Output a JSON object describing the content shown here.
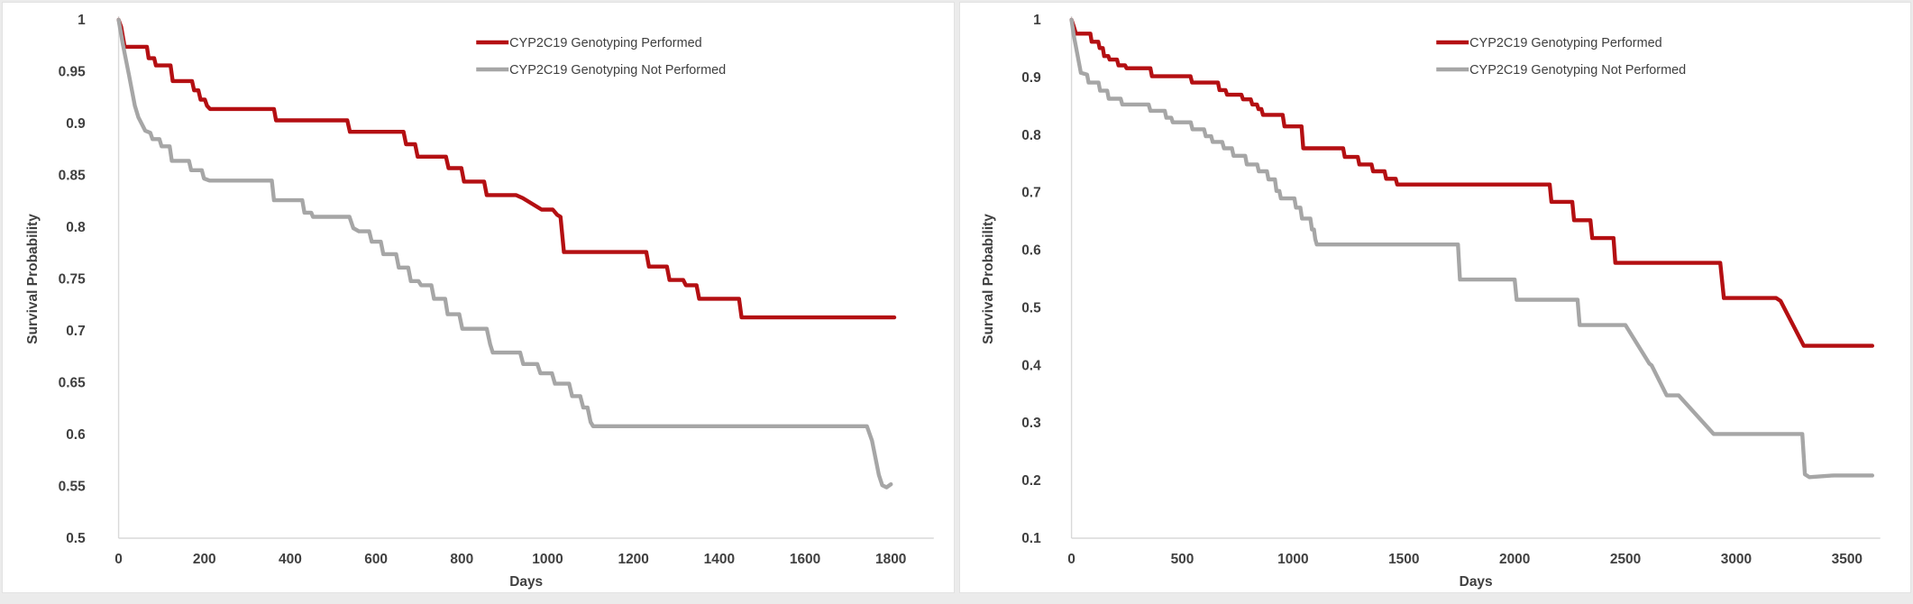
{
  "colors": {
    "performed": "#b40f12",
    "not_performed": "#a6a6a6",
    "axis_line": "#d9d9d9",
    "text": "#404040",
    "legend_text": "#3f3f3f"
  },
  "chart_data": [
    {
      "type": "line",
      "title": "",
      "xlabel": "Days",
      "ylabel": "Survival Probability",
      "xlim": [
        0,
        1900
      ],
      "ylim": [
        0.5,
        1.0
      ],
      "grid": false,
      "legend_position": "top-right",
      "xticks": {
        "values": [
          0,
          200,
          400,
          600,
          800,
          1000,
          1200,
          1400,
          1600,
          1800
        ],
        "labels": [
          "0",
          "200",
          "400",
          "600",
          "800",
          "1000",
          "1200",
          "1400",
          "1600",
          "1800"
        ]
      },
      "yticks": {
        "values": [
          1.0,
          0.95,
          0.9,
          0.85,
          0.8,
          0.75,
          0.7,
          0.65,
          0.6,
          0.55,
          0.5
        ],
        "labels": [
          "1",
          "0.95",
          "0.9",
          "0.85",
          "0.8",
          "0.75",
          "0.7",
          "0.65",
          "0.6",
          "0.55",
          "0.5"
        ]
      },
      "series": [
        {
          "name": "CYP2C19 Genotyping Performed",
          "color_key": "performed",
          "points": [
            [
              0,
              1.0
            ],
            [
              6,
              0.993
            ],
            [
              14,
              0.974
            ],
            [
              66,
              0.974
            ],
            [
              70,
              0.963
            ],
            [
              83,
              0.963
            ],
            [
              87,
              0.956
            ],
            [
              121,
              0.956
            ],
            [
              126,
              0.941
            ],
            [
              171,
              0.941
            ],
            [
              176,
              0.932
            ],
            [
              186,
              0.932
            ],
            [
              191,
              0.923
            ],
            [
              201,
              0.923
            ],
            [
              206,
              0.917
            ],
            [
              213,
              0.914
            ],
            [
              362,
              0.914
            ],
            [
              367,
              0.903
            ],
            [
              533,
              0.903
            ],
            [
              539,
              0.892
            ],
            [
              664,
              0.892
            ],
            [
              670,
              0.88
            ],
            [
              691,
              0.88
            ],
            [
              697,
              0.868
            ],
            [
              763,
              0.868
            ],
            [
              769,
              0.857
            ],
            [
              799,
              0.857
            ],
            [
              805,
              0.844
            ],
            [
              852,
              0.844
            ],
            [
              858,
              0.831
            ],
            [
              926,
              0.831
            ],
            [
              942,
              0.828
            ],
            [
              986,
              0.817
            ],
            [
              1012,
              0.817
            ],
            [
              1022,
              0.812
            ],
            [
              1030,
              0.81
            ],
            [
              1038,
              0.776
            ],
            [
              1230,
              0.776
            ],
            [
              1236,
              0.762
            ],
            [
              1278,
              0.762
            ],
            [
              1284,
              0.749
            ],
            [
              1316,
              0.749
            ],
            [
              1322,
              0.744
            ],
            [
              1347,
              0.744
            ],
            [
              1353,
              0.731
            ],
            [
              1446,
              0.731
            ],
            [
              1452,
              0.713
            ],
            [
              1808,
              0.713
            ]
          ]
        },
        {
          "name": "CYP2C19 Genotyping Not Performed",
          "color_key": "not_performed",
          "points": [
            [
              0,
              1.0
            ],
            [
              10,
              0.976
            ],
            [
              24,
              0.947
            ],
            [
              38,
              0.917
            ],
            [
              46,
              0.906
            ],
            [
              56,
              0.898
            ],
            [
              62,
              0.893
            ],
            [
              74,
              0.891
            ],
            [
              79,
              0.885
            ],
            [
              95,
              0.885
            ],
            [
              100,
              0.878
            ],
            [
              119,
              0.878
            ],
            [
              124,
              0.864
            ],
            [
              164,
              0.864
            ],
            [
              169,
              0.855
            ],
            [
              194,
              0.855
            ],
            [
              199,
              0.847
            ],
            [
              212,
              0.845
            ],
            [
              357,
              0.845
            ],
            [
              362,
              0.826
            ],
            [
              428,
              0.826
            ],
            [
              433,
              0.814
            ],
            [
              449,
              0.814
            ],
            [
              453,
              0.81
            ],
            [
              538,
              0.81
            ],
            [
              547,
              0.799
            ],
            [
              560,
              0.796
            ],
            [
              584,
              0.796
            ],
            [
              590,
              0.786
            ],
            [
              611,
              0.786
            ],
            [
              617,
              0.774
            ],
            [
              647,
              0.774
            ],
            [
              653,
              0.761
            ],
            [
              675,
              0.761
            ],
            [
              681,
              0.748
            ],
            [
              699,
              0.748
            ],
            [
              705,
              0.744
            ],
            [
              729,
              0.744
            ],
            [
              735,
              0.731
            ],
            [
              761,
              0.731
            ],
            [
              767,
              0.716
            ],
            [
              794,
              0.716
            ],
            [
              801,
              0.702
            ],
            [
              858,
              0.702
            ],
            [
              866,
              0.687
            ],
            [
              872,
              0.679
            ],
            [
              936,
              0.679
            ],
            [
              943,
              0.668
            ],
            [
              976,
              0.668
            ],
            [
              983,
              0.659
            ],
            [
              1010,
              0.659
            ],
            [
              1017,
              0.649
            ],
            [
              1050,
              0.649
            ],
            [
              1057,
              0.637
            ],
            [
              1076,
              0.637
            ],
            [
              1083,
              0.626
            ],
            [
              1093,
              0.626
            ],
            [
              1100,
              0.612
            ],
            [
              1106,
              0.608
            ],
            [
              1744,
              0.608
            ],
            [
              1756,
              0.594
            ],
            [
              1772,
              0.561
            ],
            [
              1780,
              0.551
            ],
            [
              1790,
              0.549
            ],
            [
              1800,
              0.552
            ]
          ]
        }
      ]
    },
    {
      "type": "line",
      "title": "",
      "xlabel": "Days",
      "ylabel": "Survival Probability",
      "xlim": [
        0,
        3650
      ],
      "ylim": [
        0.1,
        1.0
      ],
      "grid": false,
      "legend_position": "top-right",
      "xticks": {
        "values": [
          0,
          500,
          1000,
          1500,
          2000,
          2500,
          3000,
          3500
        ],
        "labels": [
          "0",
          "500",
          "1000",
          "1500",
          "2000",
          "2500",
          "3000",
          "3500"
        ]
      },
      "yticks": {
        "values": [
          1.0,
          0.9,
          0.8,
          0.7,
          0.6,
          0.5,
          0.4,
          0.3,
          0.2,
          0.1
        ],
        "labels": [
          "1",
          "0.9",
          "0.8",
          "0.7",
          "0.6",
          "0.5",
          "0.4",
          "0.3",
          "0.2",
          "0.1"
        ]
      },
      "series": [
        {
          "name": "CYP2C19 Genotyping Performed",
          "color_key": "performed",
          "points": [
            [
              0,
              1.0
            ],
            [
              8,
              0.991
            ],
            [
              20,
              0.976
            ],
            [
              85,
              0.976
            ],
            [
              91,
              0.962
            ],
            [
              121,
              0.962
            ],
            [
              127,
              0.951
            ],
            [
              141,
              0.951
            ],
            [
              147,
              0.937
            ],
            [
              166,
              0.937
            ],
            [
              172,
              0.931
            ],
            [
              205,
              0.931
            ],
            [
              212,
              0.921
            ],
            [
              242,
              0.921
            ],
            [
              248,
              0.916
            ],
            [
              356,
              0.916
            ],
            [
              363,
              0.902
            ],
            [
              537,
              0.902
            ],
            [
              544,
              0.891
            ],
            [
              661,
              0.891
            ],
            [
              668,
              0.878
            ],
            [
              695,
              0.878
            ],
            [
              702,
              0.87
            ],
            [
              767,
              0.87
            ],
            [
              774,
              0.862
            ],
            [
              809,
              0.862
            ],
            [
              816,
              0.853
            ],
            [
              837,
              0.853
            ],
            [
              844,
              0.845
            ],
            [
              857,
              0.845
            ],
            [
              864,
              0.835
            ],
            [
              953,
              0.835
            ],
            [
              961,
              0.815
            ],
            [
              1038,
              0.815
            ],
            [
              1046,
              0.777
            ],
            [
              1226,
              0.777
            ],
            [
              1233,
              0.762
            ],
            [
              1292,
              0.762
            ],
            [
              1299,
              0.749
            ],
            [
              1354,
              0.749
            ],
            [
              1361,
              0.737
            ],
            [
              1413,
              0.737
            ],
            [
              1420,
              0.724
            ],
            [
              1463,
              0.724
            ],
            [
              1470,
              0.714
            ],
            [
              2158,
              0.714
            ],
            [
              2166,
              0.684
            ],
            [
              2260,
              0.684
            ],
            [
              2268,
              0.652
            ],
            [
              2342,
              0.652
            ],
            [
              2350,
              0.621
            ],
            [
              2446,
              0.621
            ],
            [
              2454,
              0.578
            ],
            [
              2928,
              0.578
            ],
            [
              2944,
              0.517
            ],
            [
              3180,
              0.517
            ],
            [
              3200,
              0.512
            ],
            [
              3305,
              0.434
            ],
            [
              3614,
              0.434
            ]
          ]
        },
        {
          "name": "CYP2C19 Genotyping Not Performed",
          "color_key": "not_performed",
          "points": [
            [
              0,
              1.0
            ],
            [
              10,
              0.973
            ],
            [
              26,
              0.941
            ],
            [
              42,
              0.908
            ],
            [
              70,
              0.905
            ],
            [
              77,
              0.891
            ],
            [
              122,
              0.891
            ],
            [
              129,
              0.877
            ],
            [
              161,
              0.877
            ],
            [
              168,
              0.863
            ],
            [
              222,
              0.863
            ],
            [
              229,
              0.853
            ],
            [
              348,
              0.853
            ],
            [
              356,
              0.842
            ],
            [
              421,
              0.842
            ],
            [
              428,
              0.83
            ],
            [
              450,
              0.83
            ],
            [
              457,
              0.822
            ],
            [
              538,
              0.822
            ],
            [
              546,
              0.81
            ],
            [
              598,
              0.81
            ],
            [
              606,
              0.798
            ],
            [
              630,
              0.798
            ],
            [
              637,
              0.788
            ],
            [
              680,
              0.788
            ],
            [
              688,
              0.777
            ],
            [
              724,
              0.777
            ],
            [
              731,
              0.764
            ],
            [
              784,
              0.764
            ],
            [
              791,
              0.749
            ],
            [
              838,
              0.749
            ],
            [
              845,
              0.737
            ],
            [
              882,
              0.737
            ],
            [
              889,
              0.723
            ],
            [
              918,
              0.723
            ],
            [
              925,
              0.703
            ],
            [
              938,
              0.703
            ],
            [
              945,
              0.69
            ],
            [
              1006,
              0.69
            ],
            [
              1013,
              0.674
            ],
            [
              1033,
              0.674
            ],
            [
              1040,
              0.655
            ],
            [
              1078,
              0.655
            ],
            [
              1085,
              0.636
            ],
            [
              1094,
              0.636
            ],
            [
              1100,
              0.619
            ],
            [
              1107,
              0.61
            ],
            [
              1744,
              0.61
            ],
            [
              1753,
              0.549
            ],
            [
              2000,
              0.549
            ],
            [
              2009,
              0.514
            ],
            [
              2284,
              0.514
            ],
            [
              2293,
              0.47
            ],
            [
              2500,
              0.47
            ],
            [
              2608,
              0.403
            ],
            [
              2618,
              0.4
            ],
            [
              2686,
              0.348
            ],
            [
              2740,
              0.348
            ],
            [
              2898,
              0.281
            ],
            [
              3298,
              0.281
            ],
            [
              3310,
              0.211
            ],
            [
              3330,
              0.206
            ],
            [
              3440,
              0.209
            ],
            [
              3614,
              0.209
            ]
          ]
        }
      ]
    }
  ]
}
